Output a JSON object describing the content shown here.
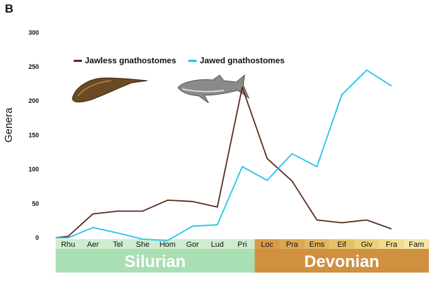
{
  "panel_label": "B",
  "colors": {
    "jawless": "#5b2a1b",
    "jawed": "#22c4ea",
    "silurian_band": "#a9dfb2",
    "devonian_band": "#cf9040"
  },
  "icons": [
    "jawless-fish-illustration",
    "shark-illustration"
  ],
  "chart_data": {
    "type": "line",
    "ylabel": "Genera",
    "xlabel": "",
    "ylim": [
      0,
      300
    ],
    "yticks": [
      0,
      50,
      100,
      150,
      200,
      250,
      300
    ],
    "grid": false,
    "legend_position": "top-left",
    "categories": [
      "Rhu",
      "Aer",
      "Tel",
      "She",
      "Hom",
      "Gor",
      "Lud",
      "Pri",
      "Loc",
      "Pra",
      "Ems",
      "Eif",
      "Giv",
      "Fra",
      "Fam"
    ],
    "x": [
      "",
      "Rhu",
      "Aer",
      "Tel",
      "She",
      "Hom",
      "Gor",
      "Lud",
      "Pri",
      "Loc",
      "Pra",
      "Ems",
      "Eif",
      "Giv",
      "Fra",
      "Fam"
    ],
    "series": [
      {
        "name": "Jawless gnathostomes",
        "values": [
          0,
          2,
          35,
          39,
          39,
          55,
          53,
          45,
          220,
          116,
          83,
          26,
          22,
          26,
          13
        ]
      },
      {
        "name": "Jawed gnathostomes",
        "values": [
          0,
          0,
          15,
          7,
          -2,
          -4,
          17,
          19,
          104,
          84,
          123,
          104,
          209,
          245,
          222
        ]
      }
    ],
    "periods": [
      {
        "name": "Silurian",
        "stages": [
          "Rhu",
          "Aer",
          "Tel",
          "She",
          "Hom",
          "Gor",
          "Lud",
          "Pri"
        ]
      },
      {
        "name": "Devonian",
        "stages": [
          "Loc",
          "Pra",
          "Ems",
          "Eif",
          "Giv",
          "Fra",
          "Fam"
        ]
      }
    ]
  }
}
